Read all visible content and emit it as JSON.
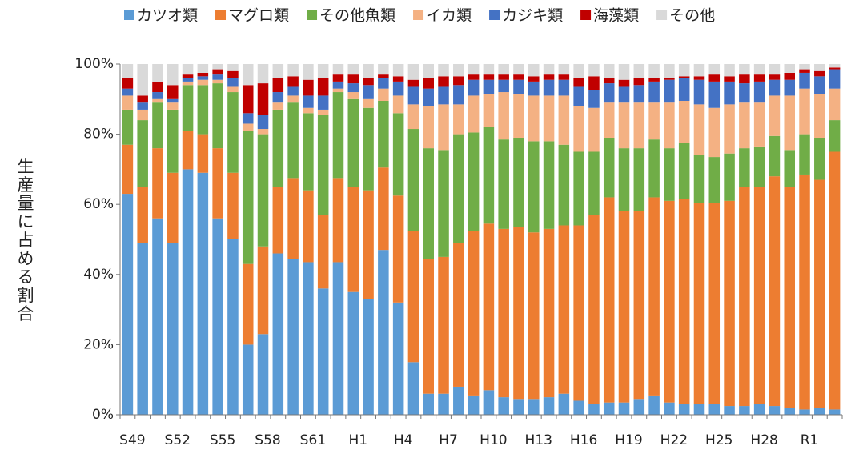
{
  "chart_data": {
    "type": "stacked_bar",
    "y_label": "生産量に占める割合",
    "categories": [
      "S49",
      null,
      null,
      "S52",
      null,
      null,
      "S55",
      null,
      null,
      "S58",
      null,
      null,
      "S61",
      null,
      null,
      "H1",
      null,
      null,
      "H4",
      null,
      null,
      "H7",
      null,
      null,
      "H10",
      null,
      null,
      "H13",
      null,
      null,
      "H16",
      null,
      null,
      "H19",
      null,
      null,
      "H22",
      null,
      null,
      "H25",
      null,
      null,
      "H28",
      null,
      null,
      "R1",
      null,
      null
    ],
    "ylim": [
      0,
      100
    ],
    "yticks": [
      {
        "value": 0,
        "label": "0%"
      },
      {
        "value": 20,
        "label": "20%"
      },
      {
        "value": 40,
        "label": "40%"
      },
      {
        "value": 60,
        "label": "60%"
      },
      {
        "value": 80,
        "label": "80%"
      },
      {
        "value": 100,
        "label": "100%"
      }
    ],
    "legend": "top",
    "series": [
      {
        "name": "カツオ類",
        "color": "#5b9bd5",
        "values": [
          63,
          49,
          56,
          49,
          70,
          69,
          56,
          50,
          20,
          23,
          46,
          44.5,
          43.5,
          36,
          43.5,
          35,
          33,
          47,
          32,
          15,
          6,
          6,
          8,
          5.5,
          7,
          5,
          4.5,
          4.5,
          5,
          6,
          4,
          3,
          3.5,
          3.5,
          4.5,
          5.5,
          3.5,
          3,
          3,
          3,
          2.5,
          2.5,
          3,
          2.5,
          2,
          1.5,
          2,
          1.5
        ]
      },
      {
        "name": "マグロ類",
        "color": "#ed7d31",
        "values": [
          14,
          16,
          20,
          20,
          11,
          11,
          20,
          19,
          23,
          25,
          19,
          23,
          20.5,
          21,
          24,
          30,
          31,
          23.5,
          30.5,
          37.5,
          38.5,
          39,
          41,
          47,
          47.5,
          48,
          49,
          47.5,
          48,
          48,
          50,
          54,
          58.5,
          54.5,
          53.5,
          56.5,
          57.5,
          58.5,
          57.5,
          57.5,
          58.5,
          62.5,
          62,
          65.5,
          63,
          67,
          65,
          73.5
        ]
      },
      {
        "name": "その他魚類",
        "color": "#70ad47",
        "values": [
          10,
          19,
          13,
          18,
          13,
          14,
          18.5,
          23,
          38,
          32,
          22,
          21.5,
          22,
          28.5,
          24.5,
          25,
          23.5,
          19,
          23.5,
          29,
          31.5,
          30.5,
          31,
          28,
          27.5,
          25.5,
          25.5,
          26,
          25,
          23,
          21,
          18,
          17,
          18,
          18,
          16.5,
          15,
          16,
          13.5,
          13,
          13.5,
          11,
          11.5,
          11.5,
          10.5,
          11.5,
          12,
          9
        ]
      },
      {
        "name": "イカ類",
        "color": "#f4b183",
        "values": [
          4,
          3,
          1,
          2,
          1,
          1.5,
          1,
          1.5,
          2,
          1.5,
          2,
          2,
          1.5,
          1.5,
          1,
          2,
          2.5,
          3.5,
          5,
          7,
          12,
          13,
          8.5,
          10.5,
          9.5,
          13.5,
          12.5,
          13,
          13,
          14,
          13,
          12.5,
          10,
          13,
          13,
          10.5,
          13,
          12,
          14.5,
          14,
          14,
          13,
          12.5,
          11.5,
          15.5,
          13,
          12.5,
          9
        ]
      },
      {
        "name": "カジキ類",
        "color": "#4472c4",
        "values": [
          2,
          2,
          2,
          1,
          1,
          1,
          1.5,
          2.5,
          3,
          4,
          3,
          2.5,
          3.5,
          4,
          2,
          2.5,
          4,
          3,
          4,
          5,
          5,
          5,
          5.5,
          4.5,
          4,
          3.5,
          4,
          4,
          4.5,
          4.5,
          5.5,
          5,
          5.5,
          4.5,
          5,
          6,
          6.5,
          6.5,
          7,
          7.5,
          6.5,
          5.5,
          6,
          4.5,
          4.5,
          4.5,
          5,
          5.5
        ]
      },
      {
        "name": "海藻類",
        "color": "#c00000",
        "values": [
          3,
          2,
          3,
          4,
          1,
          1,
          1.5,
          2,
          8,
          9,
          4,
          3,
          4.5,
          5,
          2,
          2.5,
          2,
          1,
          1.5,
          2,
          3,
          3,
          2.5,
          1.5,
          1.5,
          1.5,
          1.5,
          1.5,
          1.5,
          1.5,
          2.5,
          4,
          1.5,
          2,
          2,
          1,
          0.5,
          0.5,
          1,
          2,
          1.5,
          2.5,
          2,
          1.5,
          2,
          1,
          1.5,
          0.5
        ]
      },
      {
        "name": "その他",
        "color": "#d9d9d9",
        "values": [
          4,
          9,
          5,
          6,
          3,
          2.5,
          1.5,
          2,
          6,
          5.5,
          4,
          3.5,
          4.5,
          4,
          3,
          3,
          4,
          3,
          3.5,
          4.5,
          4,
          3.5,
          3.5,
          3,
          3,
          3,
          3,
          3.5,
          3,
          3,
          4,
          3.5,
          4,
          4.5,
          4,
          4,
          4,
          3.5,
          3.5,
          3,
          3.5,
          3,
          3,
          3,
          2.5,
          1.5,
          2,
          1
        ]
      }
    ]
  }
}
